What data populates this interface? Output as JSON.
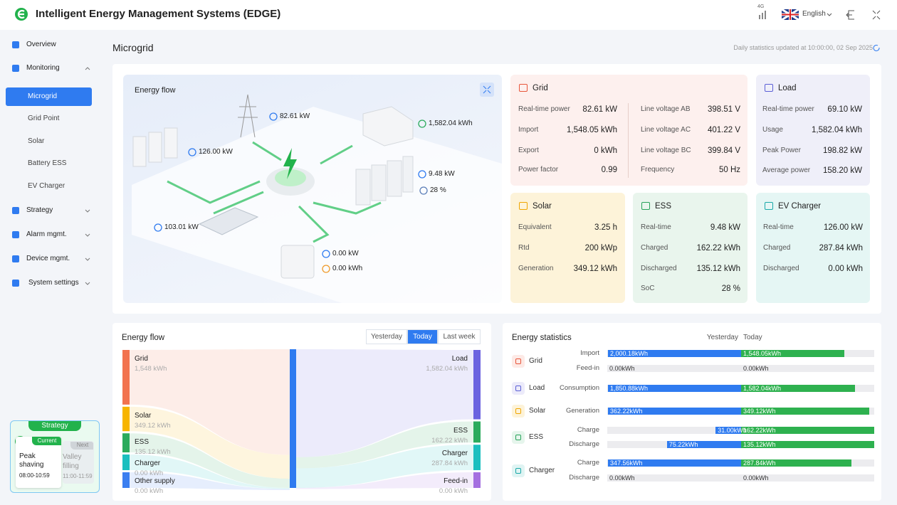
{
  "header": {
    "title": "Intelligent Energy Management Systems (EDGE)",
    "signal": "4G",
    "language": "English"
  },
  "sidebar": {
    "items": [
      {
        "label": "Overview"
      },
      {
        "label": "Monitoring",
        "children": [
          "Microgrid",
          "Grid Point",
          "Solar",
          "Battery ESS",
          "EV Charger"
        ]
      },
      {
        "label": "Strategy"
      },
      {
        "label": "Alarm mgmt."
      },
      {
        "label": "Device mgmt."
      },
      {
        "label": "System settings"
      }
    ]
  },
  "strategy": {
    "title": "Strategy",
    "badge": "AI",
    "current": {
      "tag": "Current",
      "name": "Peak shaving",
      "time": "08:00-10:59"
    },
    "next": {
      "tag": "Next",
      "name": "Valley filling",
      "time": "11:00-11:59"
    }
  },
  "page": {
    "title": "Microgrid",
    "updated": "Daily statistics updated at 10:00:00, 02 Sep 2025"
  },
  "overview": {
    "title": "Energy flow",
    "labels": [
      "82.61 kW",
      "1,582.04 kWh",
      "126.00 kW",
      "9.48 kW",
      "28 %",
      "103.01 kW",
      "0.00 kW",
      "0.00 kWh"
    ]
  },
  "cards": [
    {
      "title": "Grid",
      "columns": [
        [
          [
            "Real-time power",
            "82.61 kW"
          ],
          [
            "Import",
            "1,548.05 kWh"
          ],
          [
            "Export",
            "0 kWh"
          ],
          [
            "Power factor",
            "0.99"
          ]
        ],
        [
          [
            "Line voltage AB",
            "398.51 V"
          ],
          [
            "Line voltage AC",
            "401.22 V"
          ],
          [
            "Line voltage BC",
            "399.84 V"
          ],
          [
            "Frequency",
            "50 Hz"
          ]
        ]
      ]
    },
    {
      "title": "Load",
      "columns": [
        [
          [
            "Real-time power",
            "69.10 kW"
          ],
          [
            "Usage",
            "1,582.04 kWh"
          ],
          [
            "Peak Power",
            "198.82 kW"
          ],
          [
            "Average power",
            "158.20 kW"
          ]
        ]
      ]
    },
    {
      "title": "Solar",
      "columns": [
        [
          [
            "Equivalent",
            "3.25 h"
          ],
          [
            "Rtd",
            "200 kWp"
          ],
          [
            "Generation",
            "349.12 kWh"
          ]
        ]
      ]
    },
    {
      "title": "ESS",
      "columns": [
        [
          [
            "Real-time",
            "9.48 kW"
          ],
          [
            "Charged",
            "162.22 kWh"
          ],
          [
            "Discharged",
            "135.12 kWh"
          ],
          [
            "SoC",
            "28 %"
          ]
        ]
      ]
    },
    {
      "title": "EV Charger",
      "columns": [
        [
          [
            "Real-time",
            "126.00 kW"
          ],
          [
            "Charged",
            "287.84 kWh"
          ],
          [
            "Discharged",
            "0.00 kWh"
          ]
        ]
      ]
    }
  ],
  "sankey": {
    "title": "Energy flow",
    "tabs": [
      "Yesterday",
      "Today",
      "Last week"
    ],
    "sources": [
      {
        "name": "Grid",
        "value": 1548,
        "label": "1,548 kWh",
        "color": "#f2734f"
      },
      {
        "name": "Solar",
        "value": 349.12,
        "label": "349.12 kWh",
        "color": "#f7b500"
      },
      {
        "name": "ESS",
        "value": 135.12,
        "label": "135.12 kWh",
        "color": "#2bab5c"
      },
      {
        "name": "Charger",
        "value": 0,
        "label": "0.00 kWh",
        "color": "#1bbfbf"
      },
      {
        "name": "Other supply",
        "value": 0,
        "label": "0.00 kWh",
        "color": "#3b7ff0"
      }
    ],
    "targets": [
      {
        "name": "Load",
        "value": 1582.04,
        "label": "1,582.04 kWh",
        "color": "#6b63e0"
      },
      {
        "name": "ESS",
        "value": 162.22,
        "label": "162.22 kWh",
        "color": "#2bab5c"
      },
      {
        "name": "Charger",
        "value": 287.84,
        "label": "287.84 kWh",
        "color": "#1bbfbf"
      },
      {
        "name": "Feed-in",
        "value": 0,
        "label": "0.00 kWh",
        "color": "#a46fe0"
      }
    ]
  },
  "stats": {
    "title": "Energy statistics",
    "columns": [
      "Yesterday",
      "Today"
    ],
    "yesterday_color": "#2f7bf0",
    "today_color": "#2eb14f",
    "groups": [
      {
        "name": "Grid",
        "rows": [
          {
            "label": "Import",
            "yesterday": 2000.18,
            "yesterday_label": "2,000.18kWh",
            "today": 1548.05,
            "today_label": "1,548.05kWh"
          },
          {
            "label": "Feed-in",
            "yesterday": 0,
            "yesterday_label": "0.00kWh",
            "today": 0,
            "today_label": "0.00kWh"
          }
        ]
      },
      {
        "name": "Load",
        "rows": [
          {
            "label": "Consumption",
            "yesterday": 1850.88,
            "yesterday_label": "1,850.88kWh",
            "today": 1582.04,
            "today_label": "1,582.04kWh"
          }
        ]
      },
      {
        "name": "Solar",
        "rows": [
          {
            "label": "Generation",
            "yesterday": 362.22,
            "yesterday_label": "362.22kWh",
            "today": 349.12,
            "today_label": "349.12kWh"
          }
        ]
      },
      {
        "name": "ESS",
        "rows": [
          {
            "label": "Charge",
            "yesterday": 31.0,
            "yesterday_label": "31.00kWh",
            "today": 162.22,
            "today_label": "162.22kWh"
          },
          {
            "label": "Discharge",
            "yesterday": 75.22,
            "yesterday_label": "75.22kWh",
            "today": 135.12,
            "today_label": "135.12kWh"
          }
        ]
      },
      {
        "name": "Charger",
        "rows": [
          {
            "label": "Charge",
            "yesterday": 347.56,
            "yesterday_label": "347.56kWh",
            "today": 287.84,
            "today_label": "287.84kWh"
          },
          {
            "label": "Discharge",
            "yesterday": 0,
            "yesterday_label": "0.00kWh",
            "today": 0,
            "today_label": "0.00kWh"
          }
        ]
      }
    ]
  }
}
